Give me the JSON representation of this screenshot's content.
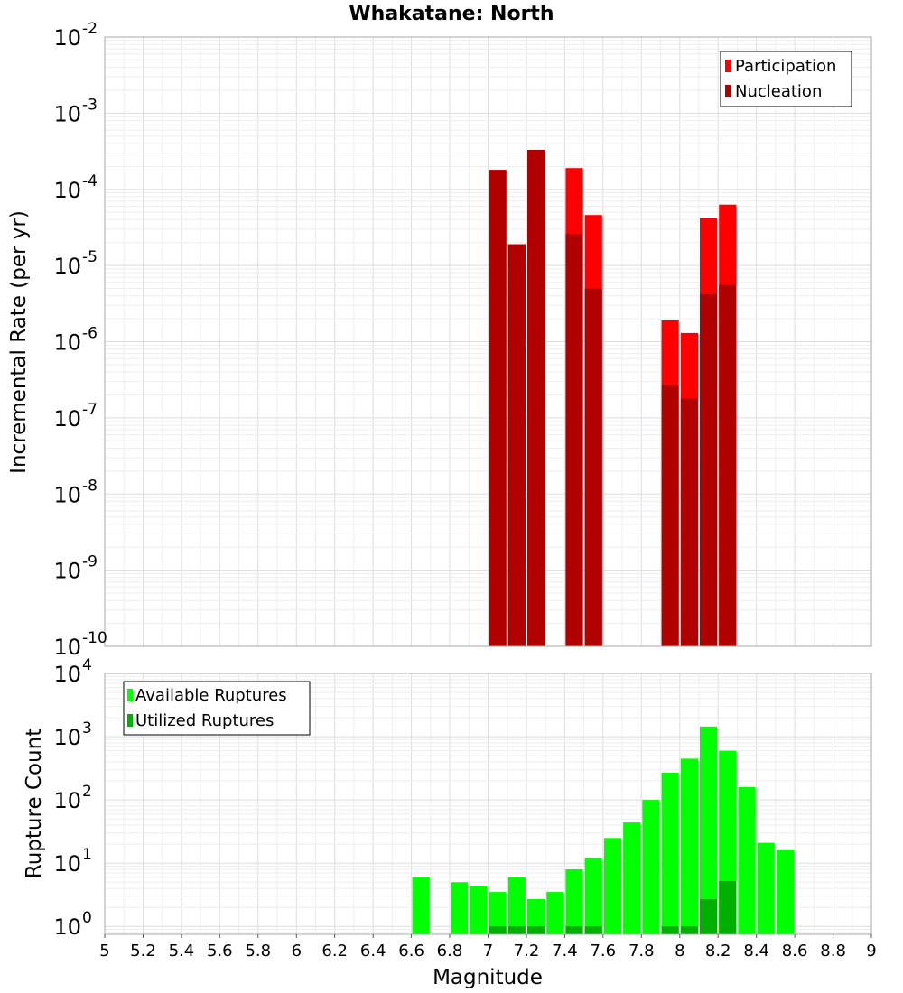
{
  "chart_data": [
    {
      "type": "bar",
      "title": "Whakatane: North",
      "ylabel": "Incremental Rate (per yr)",
      "xlim": [
        5,
        9
      ],
      "ylim": [
        1e-10,
        0.01
      ],
      "yscale": "log",
      "grid": true,
      "legend_position": "top-right",
      "bin_width": 0.1,
      "y_ticks": [
        {
          "base": "10",
          "exp": "-10"
        },
        {
          "base": "10",
          "exp": "-9"
        },
        {
          "base": "10",
          "exp": "-8"
        },
        {
          "base": "10",
          "exp": "-7"
        },
        {
          "base": "10",
          "exp": "-6"
        },
        {
          "base": "10",
          "exp": "-5"
        },
        {
          "base": "10",
          "exp": "-4"
        },
        {
          "base": "10",
          "exp": "-3"
        },
        {
          "base": "10",
          "exp": "-2"
        }
      ],
      "series": [
        {
          "name": "Participation",
          "color": "#ff0000",
          "points": [
            {
              "x": 7.05,
              "y": 0.00018
            },
            {
              "x": 7.15,
              "y": 1.9e-05
            },
            {
              "x": 7.25,
              "y": 0.00033
            },
            {
              "x": 7.45,
              "y": 0.00019
            },
            {
              "x": 7.55,
              "y": 4.6e-05
            },
            {
              "x": 7.95,
              "y": 1.9e-06
            },
            {
              "x": 8.05,
              "y": 1.3e-06
            },
            {
              "x": 8.15,
              "y": 4.2e-05
            },
            {
              "x": 8.25,
              "y": 6.3e-05
            }
          ]
        },
        {
          "name": "Nucleation",
          "color": "#b00000",
          "points": [
            {
              "x": 7.05,
              "y": 0.00018
            },
            {
              "x": 7.15,
              "y": 1.9e-05
            },
            {
              "x": 7.25,
              "y": 0.00033
            },
            {
              "x": 7.45,
              "y": 2.6e-05
            },
            {
              "x": 7.55,
              "y": 5e-06
            },
            {
              "x": 7.95,
              "y": 2.7e-07
            },
            {
              "x": 8.05,
              "y": 1.8e-07
            },
            {
              "x": 8.15,
              "y": 4.2e-06
            },
            {
              "x": 8.25,
              "y": 5.6e-06
            }
          ]
        }
      ]
    },
    {
      "type": "bar",
      "ylabel": "Rupture Count",
      "xlabel": "Magnitude",
      "xlim": [
        5,
        9
      ],
      "ylim": [
        0.75,
        10000
      ],
      "yscale": "log",
      "grid": true,
      "legend_position": "top-left",
      "bin_width": 0.1,
      "x_ticks": [
        "5",
        "5.2",
        "5.4",
        "5.6",
        "5.8",
        "6",
        "6.2",
        "6.4",
        "6.6",
        "6.8",
        "7",
        "7.2",
        "7.4",
        "7.6",
        "7.8",
        "8",
        "8.2",
        "8.4",
        "8.6",
        "8.8",
        "9"
      ],
      "y_ticks": [
        {
          "base": "10",
          "exp": "0"
        },
        {
          "base": "10",
          "exp": "1"
        },
        {
          "base": "10",
          "exp": "2"
        },
        {
          "base": "10",
          "exp": "3"
        },
        {
          "base": "10",
          "exp": "4"
        }
      ],
      "series": [
        {
          "name": "Available Ruptures",
          "color": "#00ff00",
          "points": [
            {
              "x": 6.65,
              "y": 6
            },
            {
              "x": 6.85,
              "y": 5
            },
            {
              "x": 6.95,
              "y": 4.3
            },
            {
              "x": 7.05,
              "y": 3.5
            },
            {
              "x": 7.15,
              "y": 6
            },
            {
              "x": 7.25,
              "y": 2.7
            },
            {
              "x": 7.35,
              "y": 3.5
            },
            {
              "x": 7.45,
              "y": 8
            },
            {
              "x": 7.55,
              "y": 12
            },
            {
              "x": 7.65,
              "y": 25
            },
            {
              "x": 7.75,
              "y": 44
            },
            {
              "x": 7.85,
              "y": 100
            },
            {
              "x": 7.95,
              "y": 270
            },
            {
              "x": 8.05,
              "y": 450
            },
            {
              "x": 8.15,
              "y": 1450
            },
            {
              "x": 8.25,
              "y": 600
            },
            {
              "x": 8.35,
              "y": 160
            },
            {
              "x": 8.45,
              "y": 21
            },
            {
              "x": 8.55,
              "y": 16
            }
          ]
        },
        {
          "name": "Utilized Ruptures",
          "color": "#00b000",
          "points": [
            {
              "x": 7.05,
              "y": 1
            },
            {
              "x": 7.15,
              "y": 1
            },
            {
              "x": 7.25,
              "y": 1
            },
            {
              "x": 7.45,
              "y": 1
            },
            {
              "x": 7.55,
              "y": 1
            },
            {
              "x": 7.95,
              "y": 1
            },
            {
              "x": 8.05,
              "y": 1
            },
            {
              "x": 8.15,
              "y": 2.7
            },
            {
              "x": 8.25,
              "y": 5.2
            }
          ]
        }
      ]
    }
  ]
}
